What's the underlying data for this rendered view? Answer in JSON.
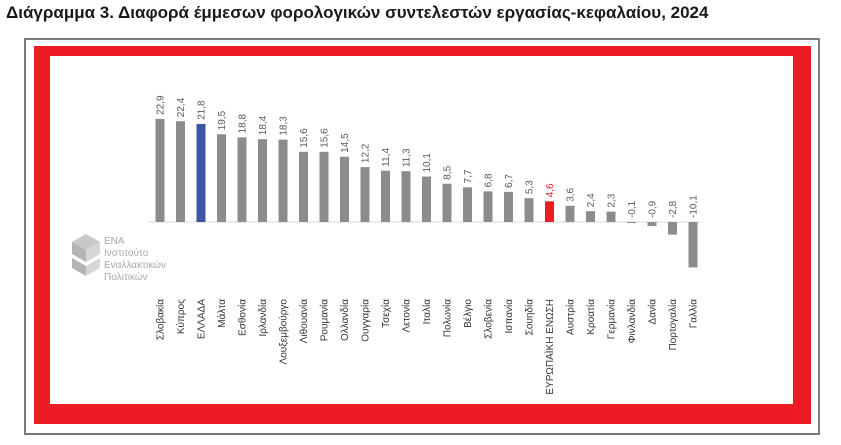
{
  "title": "Διάγραμμα 3. Διαφορά έμμεσων φορολογικών συντελεστών εργασίας-κεφαλαίου, 2024",
  "logo": {
    "line1": "ΕΝΑ",
    "line2": "Ινστιτούτο",
    "line3": "Εναλλακτικών",
    "line4": "Πολιτικών"
  },
  "colors": {
    "default_bar": "#8c8c8c",
    "greece_bar": "#3f56a5",
    "eu_bar": "#ed1c24",
    "frame_red": "#ed1c24",
    "label_default": "#595959"
  },
  "chart_data": {
    "type": "bar",
    "title": "",
    "xlabel": "",
    "ylabel": "",
    "ylim": [
      -10.1,
      22.9
    ],
    "grid": false,
    "legend": "none",
    "categories": [
      "Σλοβακία",
      "Κύπρος",
      "ΕΛΛΑΔΑ",
      "Μάλτα",
      "Εσθονία",
      "Ιρλανδία",
      "Λουξεμβούργο",
      "Λιθουανία",
      "Ρουμανία",
      "Ολλανδία",
      "Ουγγαρία",
      "Τσεχία",
      "Λετονία",
      "Ιταλία",
      "Πολωνία",
      "Βέλγιο",
      "Σλοβενία",
      "Ισπανία",
      "Σουηδία",
      "ΕΥΡΩΠΑΪΚΗ ΕΝΩΣΗ",
      "Αυστρία",
      "Κροατία",
      "Γερμανία",
      "Φινλανδία",
      "Δανία",
      "Πορτογαλία",
      "Γαλλία"
    ],
    "values": [
      22.9,
      22.4,
      21.8,
      19.5,
      18.8,
      18.4,
      18.3,
      15.6,
      15.6,
      14.5,
      12.2,
      11.4,
      11.3,
      10.1,
      8.5,
      7.7,
      6.8,
      6.7,
      5.3,
      4.6,
      3.6,
      2.4,
      2.3,
      -0.1,
      -0.9,
      -2.8,
      -10.1
    ],
    "value_labels": [
      "22,9",
      "22,4",
      "21,8",
      "19,5",
      "18,8",
      "18,4",
      "18,3",
      "15,6",
      "15,6",
      "14,5",
      "12,2",
      "11,4",
      "11,3",
      "10,1",
      "8,5",
      "7,7",
      "6,8",
      "6,7",
      "5,3",
      "4,6",
      "3,6",
      "2,4",
      "2,3",
      "-0,1",
      "-0,9",
      "-2,8",
      "-10,1"
    ],
    "highlight": {
      "ΕΛΛΑΔΑ": "greece",
      "ΕΥΡΩΠΑΪΚΗ ΕΝΩΣΗ": "eu"
    }
  }
}
